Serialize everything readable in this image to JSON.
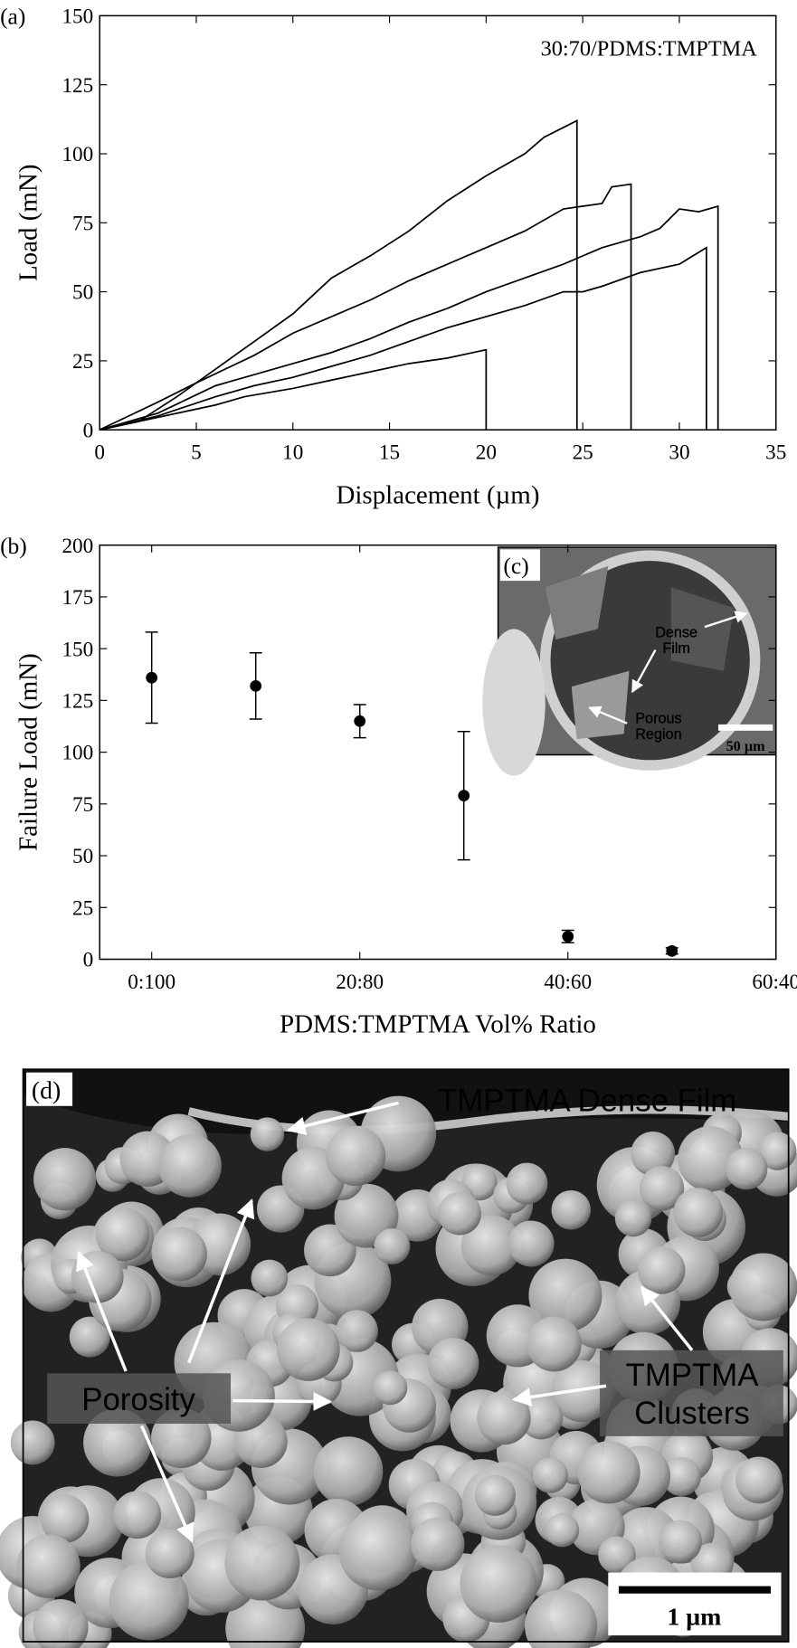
{
  "chart_data": [
    {
      "type": "line",
      "label": "(a)",
      "annotation": "30:70/PDMS:TMPTMA",
      "xlabel": "Displacement (µm)",
      "ylabel": "Load (mN)",
      "xlim": [
        0,
        35
      ],
      "xticks": [
        0,
        5,
        10,
        15,
        20,
        25,
        30,
        35
      ],
      "ylim": [
        0,
        150
      ],
      "yticks": [
        0,
        25,
        50,
        75,
        100,
        125,
        150
      ],
      "color": "#000000",
      "series": [
        {
          "x": [
            0,
            2,
            4,
            6,
            8,
            10,
            12,
            14,
            16,
            18,
            20,
            22,
            23,
            24.7,
            24.7
          ],
          "values": [
            0,
            3,
            12,
            22,
            32,
            42,
            55,
            63,
            72,
            83,
            92,
            100,
            106,
            112,
            0
          ]
        },
        {
          "x": [
            0,
            3,
            5,
            8,
            10,
            12,
            14,
            16,
            18,
            20,
            22,
            24,
            25,
            26,
            26.5,
            27.5,
            27.5
          ],
          "values": [
            0,
            10,
            17,
            27,
            35,
            41,
            47,
            54,
            60,
            66,
            72,
            80,
            81,
            82,
            88,
            89,
            0
          ]
        },
        {
          "x": [
            0,
            3,
            6,
            8,
            10,
            12,
            14,
            16,
            18,
            20,
            22,
            24,
            26,
            28,
            29,
            30,
            31,
            32,
            32
          ],
          "values": [
            0,
            6,
            16,
            20,
            24,
            28,
            33,
            39,
            44,
            50,
            55,
            60,
            66,
            70,
            73,
            80,
            79,
            81,
            0
          ]
        },
        {
          "x": [
            0,
            3,
            6,
            8,
            10,
            12,
            14,
            16,
            18,
            20,
            22,
            24,
            25,
            26,
            28,
            30,
            31.4,
            31.4
          ],
          "values": [
            0,
            5,
            12,
            16,
            19,
            23,
            27,
            32,
            37,
            41,
            45,
            50,
            50,
            52,
            57,
            60,
            66,
            0
          ]
        },
        {
          "x": [
            0,
            2,
            4,
            6,
            7.5,
            10,
            12,
            14,
            16,
            18,
            20,
            20
          ],
          "values": [
            0,
            3,
            6,
            9,
            12,
            15,
            18,
            21,
            24,
            26,
            29,
            0
          ]
        }
      ]
    },
    {
      "type": "errorbar",
      "label": "(b)",
      "xlabel": "PDMS:TMPTMA Vol% Ratio",
      "ylabel": "Failure Load (mN)",
      "xlim": [
        -5,
        60
      ],
      "xticks": [
        {
          "value": 0,
          "label": "0:100"
        },
        {
          "value": 20,
          "label": "20:80"
        },
        {
          "value": 40,
          "label": "40:60"
        },
        {
          "value": 60,
          "label": "60:40"
        }
      ],
      "ylim": [
        0,
        200
      ],
      "yticks": [
        0,
        25,
        50,
        75,
        100,
        125,
        150,
        175,
        200
      ],
      "color": "#000000",
      "x": [
        0,
        10,
        20,
        30,
        40,
        50
      ],
      "values": [
        136,
        132,
        115,
        79,
        11,
        4
      ],
      "errors": [
        22,
        16,
        8,
        31,
        3,
        1.5
      ]
    }
  ],
  "images": [
    {
      "label": "(c)",
      "annotations": [
        [
          "Dense",
          "Film"
        ],
        [
          "Porous",
          "Region"
        ]
      ],
      "scale_bar": "50 µm"
    },
    {
      "label": "(d)",
      "annotations": [
        [
          "TMPTMA Dense Film"
        ],
        [
          "Porosity"
        ],
        [
          "TMPTMA",
          "Clusters"
        ]
      ],
      "scale_bar": "1 µm"
    }
  ]
}
